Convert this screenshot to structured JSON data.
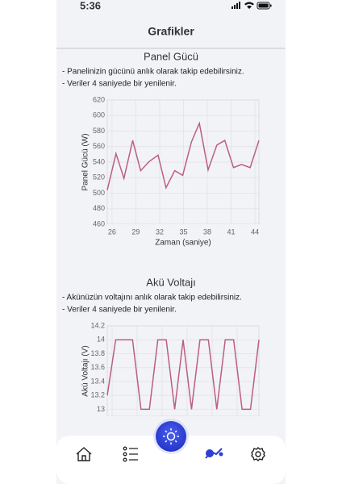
{
  "status_bar": {
    "time": "5:36"
  },
  "header": {
    "title": "Grafikler"
  },
  "chart_data": [
    {
      "type": "line",
      "title": "Panel Gücü",
      "notes": [
        "- Panelinizin gücünü anlık olarak takip edebilirsiniz.",
        "- Veriler 4 saniyede bir yenilenir."
      ],
      "xlabel": "Zaman (saniye)",
      "ylabel": "Panel Gücü (W)",
      "x": [
        25.4,
        26.5,
        27.5,
        28.6,
        29.6,
        30.7,
        31.8,
        32.8,
        33.9,
        34.9,
        36.0,
        37.0,
        38.1,
        39.2,
        40.2,
        41.3,
        42.3,
        43.4,
        44.5
      ],
      "series": [
        {
          "name": "Panel Gücü",
          "color": "#bb5f82",
          "values": [
            504,
            551,
            519,
            568,
            529,
            541,
            549,
            507,
            529,
            523,
            566,
            590,
            530,
            562,
            568,
            533,
            537,
            533,
            568
          ]
        }
      ],
      "xlim": [
        25.4,
        44.5
      ],
      "xticks": [
        26,
        29,
        32,
        35,
        38,
        41,
        44
      ],
      "ylim": [
        460,
        620
      ],
      "yticks": [
        460,
        480,
        500,
        520,
        540,
        560,
        580,
        600,
        620
      ],
      "grid": true
    },
    {
      "type": "line",
      "title": "Akü Voltajı",
      "notes": [
        "- Akünüzün voltajını anlık olarak takip edebilirsiniz.",
        "- Veriler 4 saniyede bir yenilenir."
      ],
      "ylabel": "Akü Voltajı (V)",
      "series": [
        {
          "name": "Akü Voltajı",
          "color": "#bb5f82",
          "values": [
            13.2,
            14,
            14,
            14,
            13,
            13,
            14,
            14,
            13,
            14,
            13,
            14,
            14,
            13,
            14,
            14,
            13,
            13,
            14
          ]
        }
      ],
      "ylim": [
        12.9,
        14.2
      ],
      "yticks": [
        13,
        {
          "value": 13.2,
          "label": "13.2"
        },
        {
          "value": 13.4,
          "label": "13.4"
        },
        {
          "value": 13.6,
          "label": "13.6"
        },
        {
          "value": 13.8,
          "label": "13.8"
        },
        14,
        {
          "value": 14.2,
          "label": "14.2"
        }
      ],
      "grid": true
    }
  ]
}
